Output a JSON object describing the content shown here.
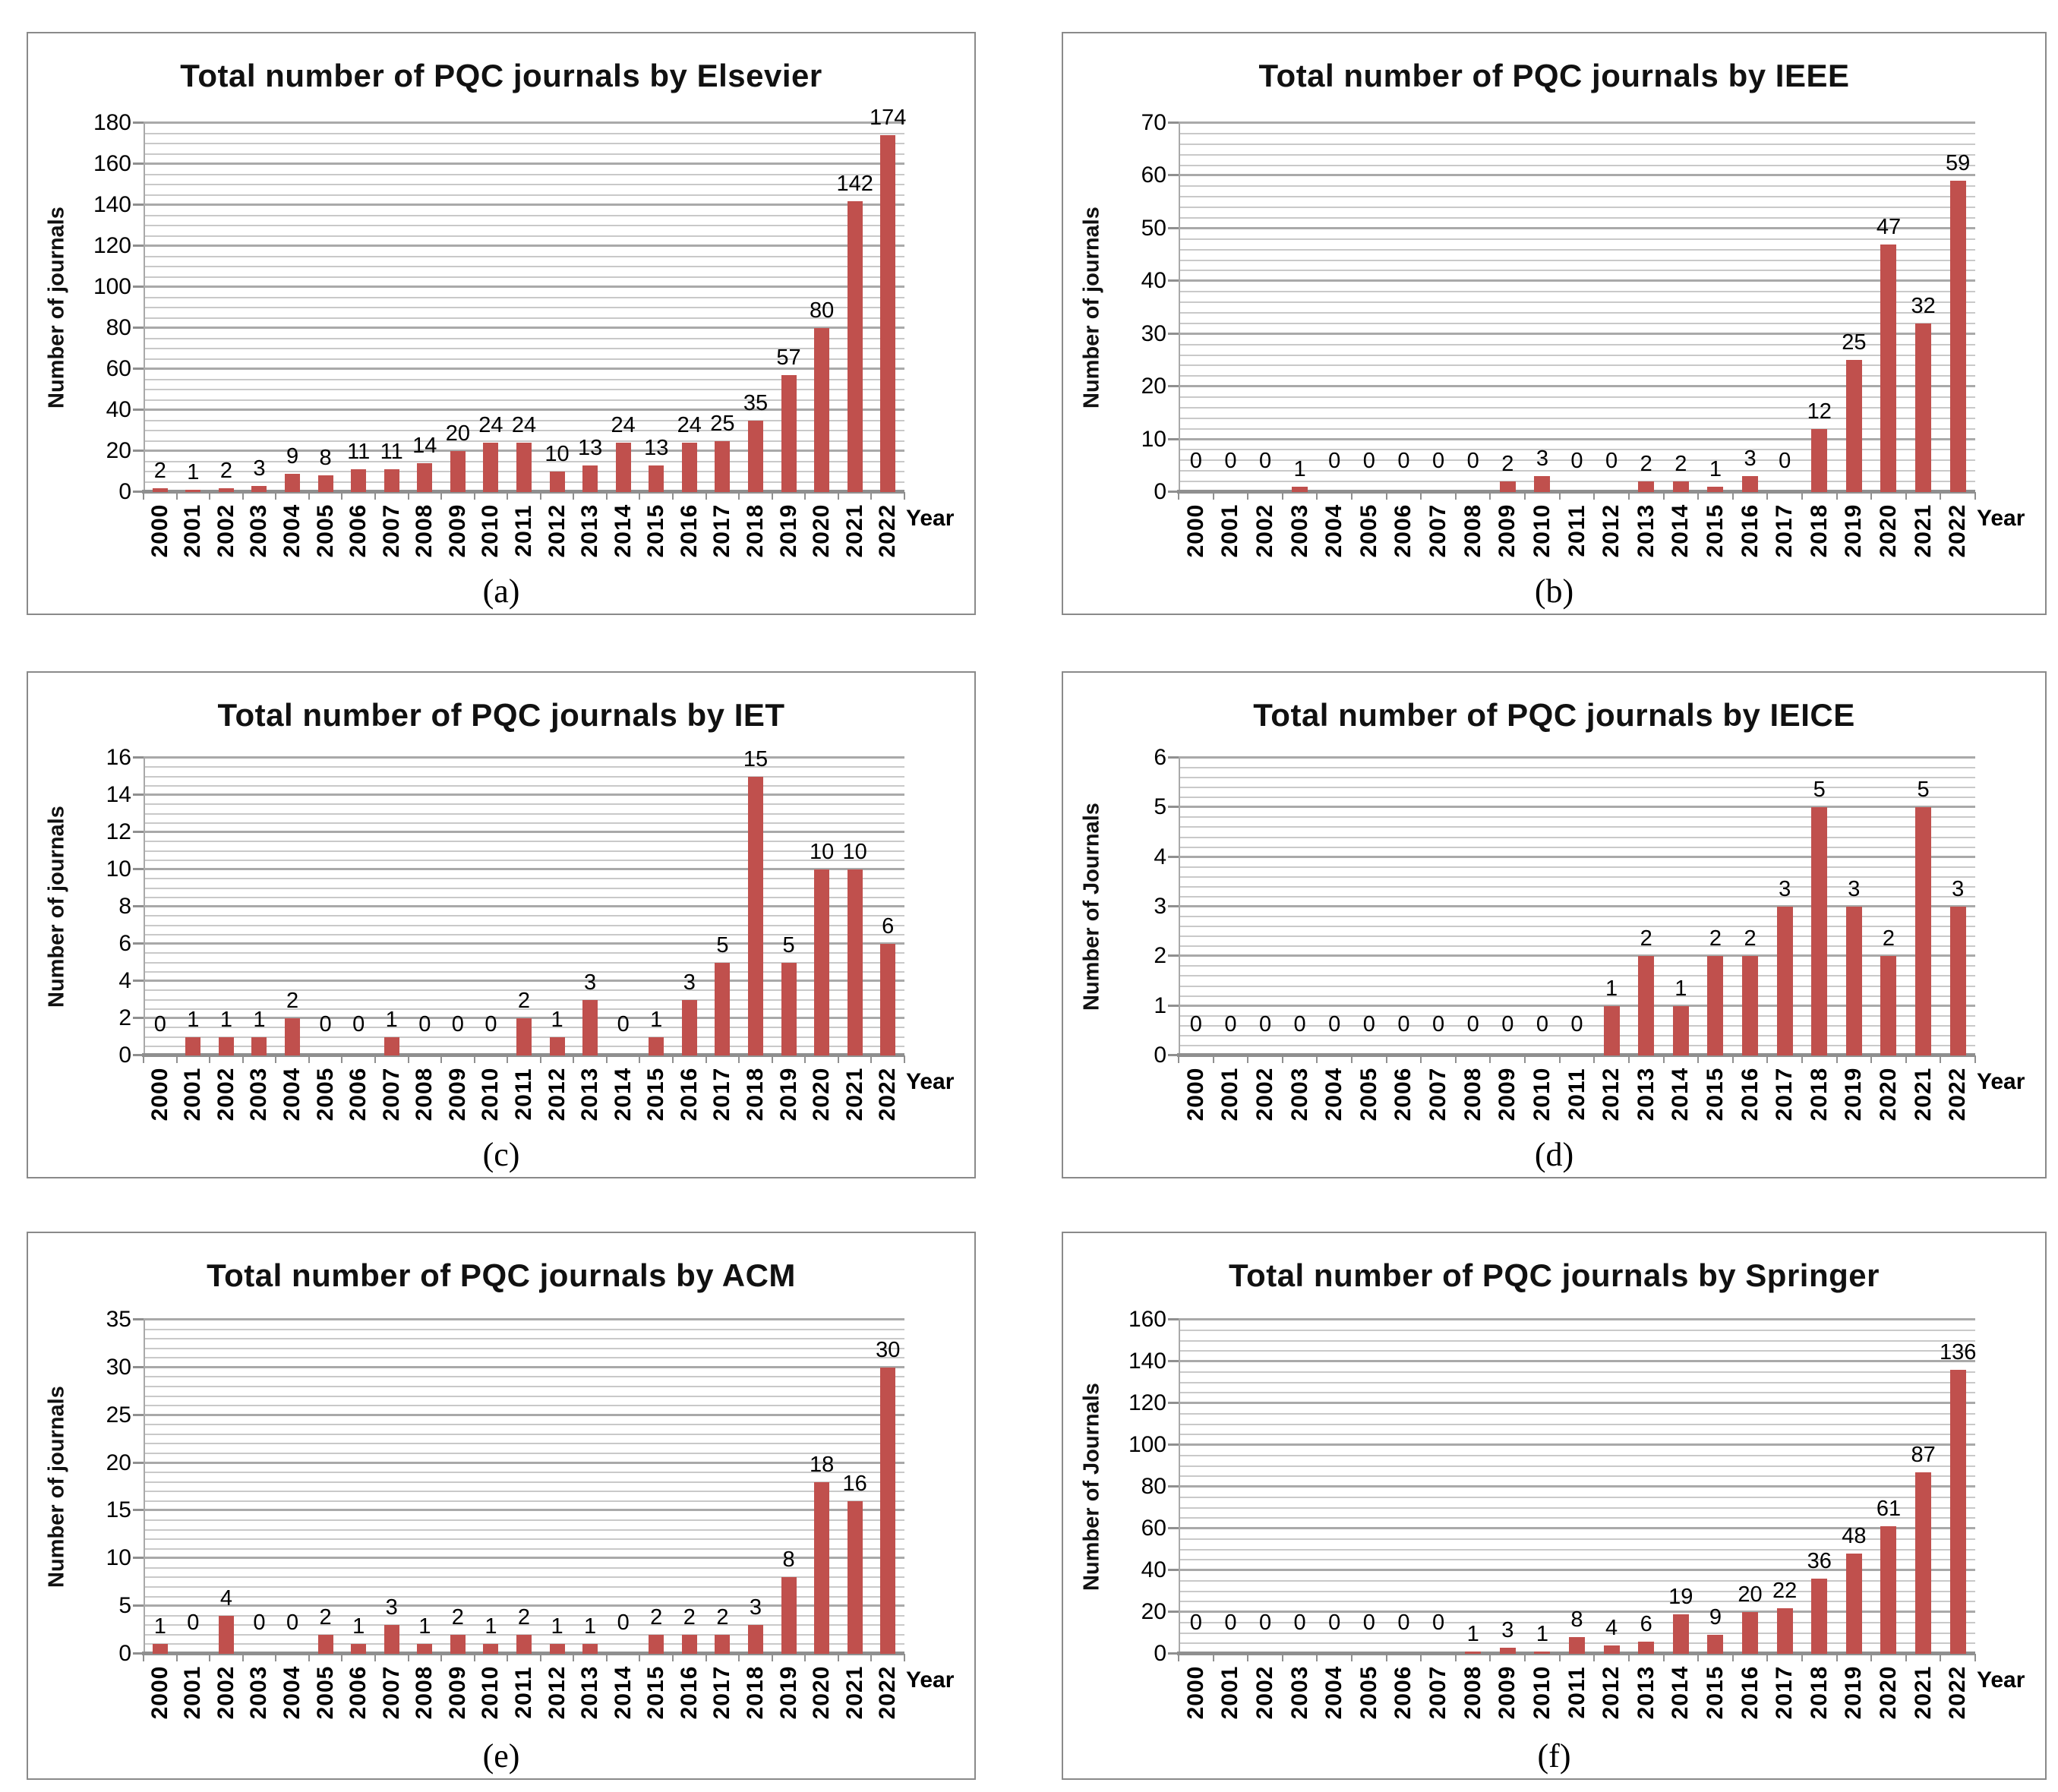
{
  "xlabel": "Year",
  "years": [
    "2000",
    "2001",
    "2002",
    "2003",
    "2004",
    "2005",
    "2006",
    "2007",
    "2008",
    "2009",
    "2010",
    "2011",
    "2012",
    "2013",
    "2014",
    "2015",
    "2016",
    "2017",
    "2018",
    "2019",
    "2020",
    "2021",
    "2022"
  ],
  "colors": {
    "bar": "#C0504D",
    "grid_minor": "#c9c9c9",
    "grid_major": "#a9a9a9",
    "axis": "#8f8f8f",
    "panel_border": "#8a8a8a",
    "text": "#000000"
  },
  "chart_data": [
    {
      "type": "bar",
      "title": "Total number of PQC journals by Elsevier",
      "ylabel": "Number of journals",
      "xlabel": "Year",
      "caption": "(a)",
      "ylim": [
        0,
        180
      ],
      "major_step": 20,
      "minor_step": 5,
      "grid": true,
      "legend": "none",
      "categories": [
        "2000",
        "2001",
        "2002",
        "2003",
        "2004",
        "2005",
        "2006",
        "2007",
        "2008",
        "2009",
        "2010",
        "2011",
        "2012",
        "2013",
        "2014",
        "2015",
        "2016",
        "2017",
        "2018",
        "2019",
        "2020",
        "2021",
        "2022"
      ],
      "values": [
        2,
        1,
        2,
        3,
        9,
        8,
        11,
        11,
        14,
        20,
        24,
        24,
        10,
        13,
        24,
        13,
        24,
        25,
        35,
        57,
        80,
        142,
        174
      ]
    },
    {
      "type": "bar",
      "title": "Total number of PQC journals by IEEE",
      "ylabel": "Number of journals",
      "xlabel": "Year",
      "caption": "(b)",
      "ylim": [
        0,
        70
      ],
      "major_step": 10,
      "minor_step": 2,
      "grid": true,
      "legend": "none",
      "categories": [
        "2000",
        "2001",
        "2002",
        "2003",
        "2004",
        "2005",
        "2006",
        "2007",
        "2008",
        "2009",
        "2010",
        "2011",
        "2012",
        "2013",
        "2014",
        "2015",
        "2016",
        "2017",
        "2018",
        "2019",
        "2020",
        "2021",
        "2022"
      ],
      "values": [
        0,
        0,
        0,
        1,
        0,
        0,
        0,
        0,
        0,
        2,
        3,
        0,
        0,
        2,
        2,
        1,
        3,
        0,
        12,
        25,
        47,
        32,
        59
      ]
    },
    {
      "type": "bar",
      "title": "Total number of PQC journals by IET",
      "ylabel": "Number of journals",
      "xlabel": "Year",
      "caption": "(c)",
      "ylim": [
        0,
        16
      ],
      "major_step": 2,
      "minor_step": 0.5,
      "grid": true,
      "legend": "none",
      "categories": [
        "2000",
        "2001",
        "2002",
        "2003",
        "2004",
        "2005",
        "2006",
        "2007",
        "2008",
        "2009",
        "2010",
        "2011",
        "2012",
        "2013",
        "2014",
        "2015",
        "2016",
        "2017",
        "2018",
        "2019",
        "2020",
        "2021",
        "2022"
      ],
      "values": [
        0,
        1,
        1,
        1,
        2,
        0,
        0,
        1,
        0,
        0,
        0,
        2,
        1,
        3,
        0,
        1,
        3,
        5,
        15,
        5,
        10,
        10,
        6
      ]
    },
    {
      "type": "bar",
      "title": "Total number of PQC journals by IEICE",
      "ylabel": "Number of Journals",
      "xlabel": "Year",
      "caption": "(d)",
      "ylim": [
        0,
        6
      ],
      "major_step": 1,
      "minor_step": 0.2,
      "grid": true,
      "legend": "none",
      "categories": [
        "2000",
        "2001",
        "2002",
        "2003",
        "2004",
        "2005",
        "2006",
        "2007",
        "2008",
        "2009",
        "2010",
        "2011",
        "2012",
        "2013",
        "2014",
        "2015",
        "2016",
        "2017",
        "2018",
        "2019",
        "2020",
        "2021",
        "2022"
      ],
      "values": [
        0,
        0,
        0,
        0,
        0,
        0,
        0,
        0,
        0,
        0,
        0,
        0,
        1,
        2,
        1,
        2,
        2,
        3,
        5,
        3,
        2,
        5,
        3
      ]
    },
    {
      "type": "bar",
      "title": "Total number of PQC journals by ACM",
      "ylabel": "Number of journals",
      "xlabel": "Year",
      "caption": "(e)",
      "ylim": [
        0,
        35
      ],
      "major_step": 5,
      "minor_step": 1,
      "grid": true,
      "legend": "none",
      "categories": [
        "2000",
        "2001",
        "2002",
        "2003",
        "2004",
        "2005",
        "2006",
        "2007",
        "2008",
        "2009",
        "2010",
        "2011",
        "2012",
        "2013",
        "2014",
        "2015",
        "2016",
        "2017",
        "2018",
        "2019",
        "2020",
        "2021",
        "2022"
      ],
      "values": [
        1,
        0,
        4,
        0,
        0,
        2,
        1,
        3,
        1,
        2,
        1,
        2,
        1,
        1,
        0,
        2,
        2,
        2,
        3,
        8,
        18,
        16,
        30
      ]
    },
    {
      "type": "bar",
      "title": "Total number of PQC journals by Springer",
      "ylabel": "Number of Journals",
      "xlabel": "Year",
      "caption": "(f)",
      "ylim": [
        0,
        160
      ],
      "major_step": 20,
      "minor_step": 5,
      "grid": true,
      "legend": "none",
      "categories": [
        "2000",
        "2001",
        "2002",
        "2003",
        "2004",
        "2005",
        "2006",
        "2007",
        "2008",
        "2009",
        "2010",
        "2011",
        "2012",
        "2013",
        "2014",
        "2015",
        "2016",
        "2017",
        "2018",
        "2019",
        "2020",
        "2021",
        "2022"
      ],
      "values": [
        0,
        0,
        0,
        0,
        0,
        0,
        0,
        0,
        1,
        3,
        1,
        8,
        4,
        6,
        19,
        9,
        20,
        22,
        36,
        48,
        61,
        87,
        136
      ]
    }
  ]
}
